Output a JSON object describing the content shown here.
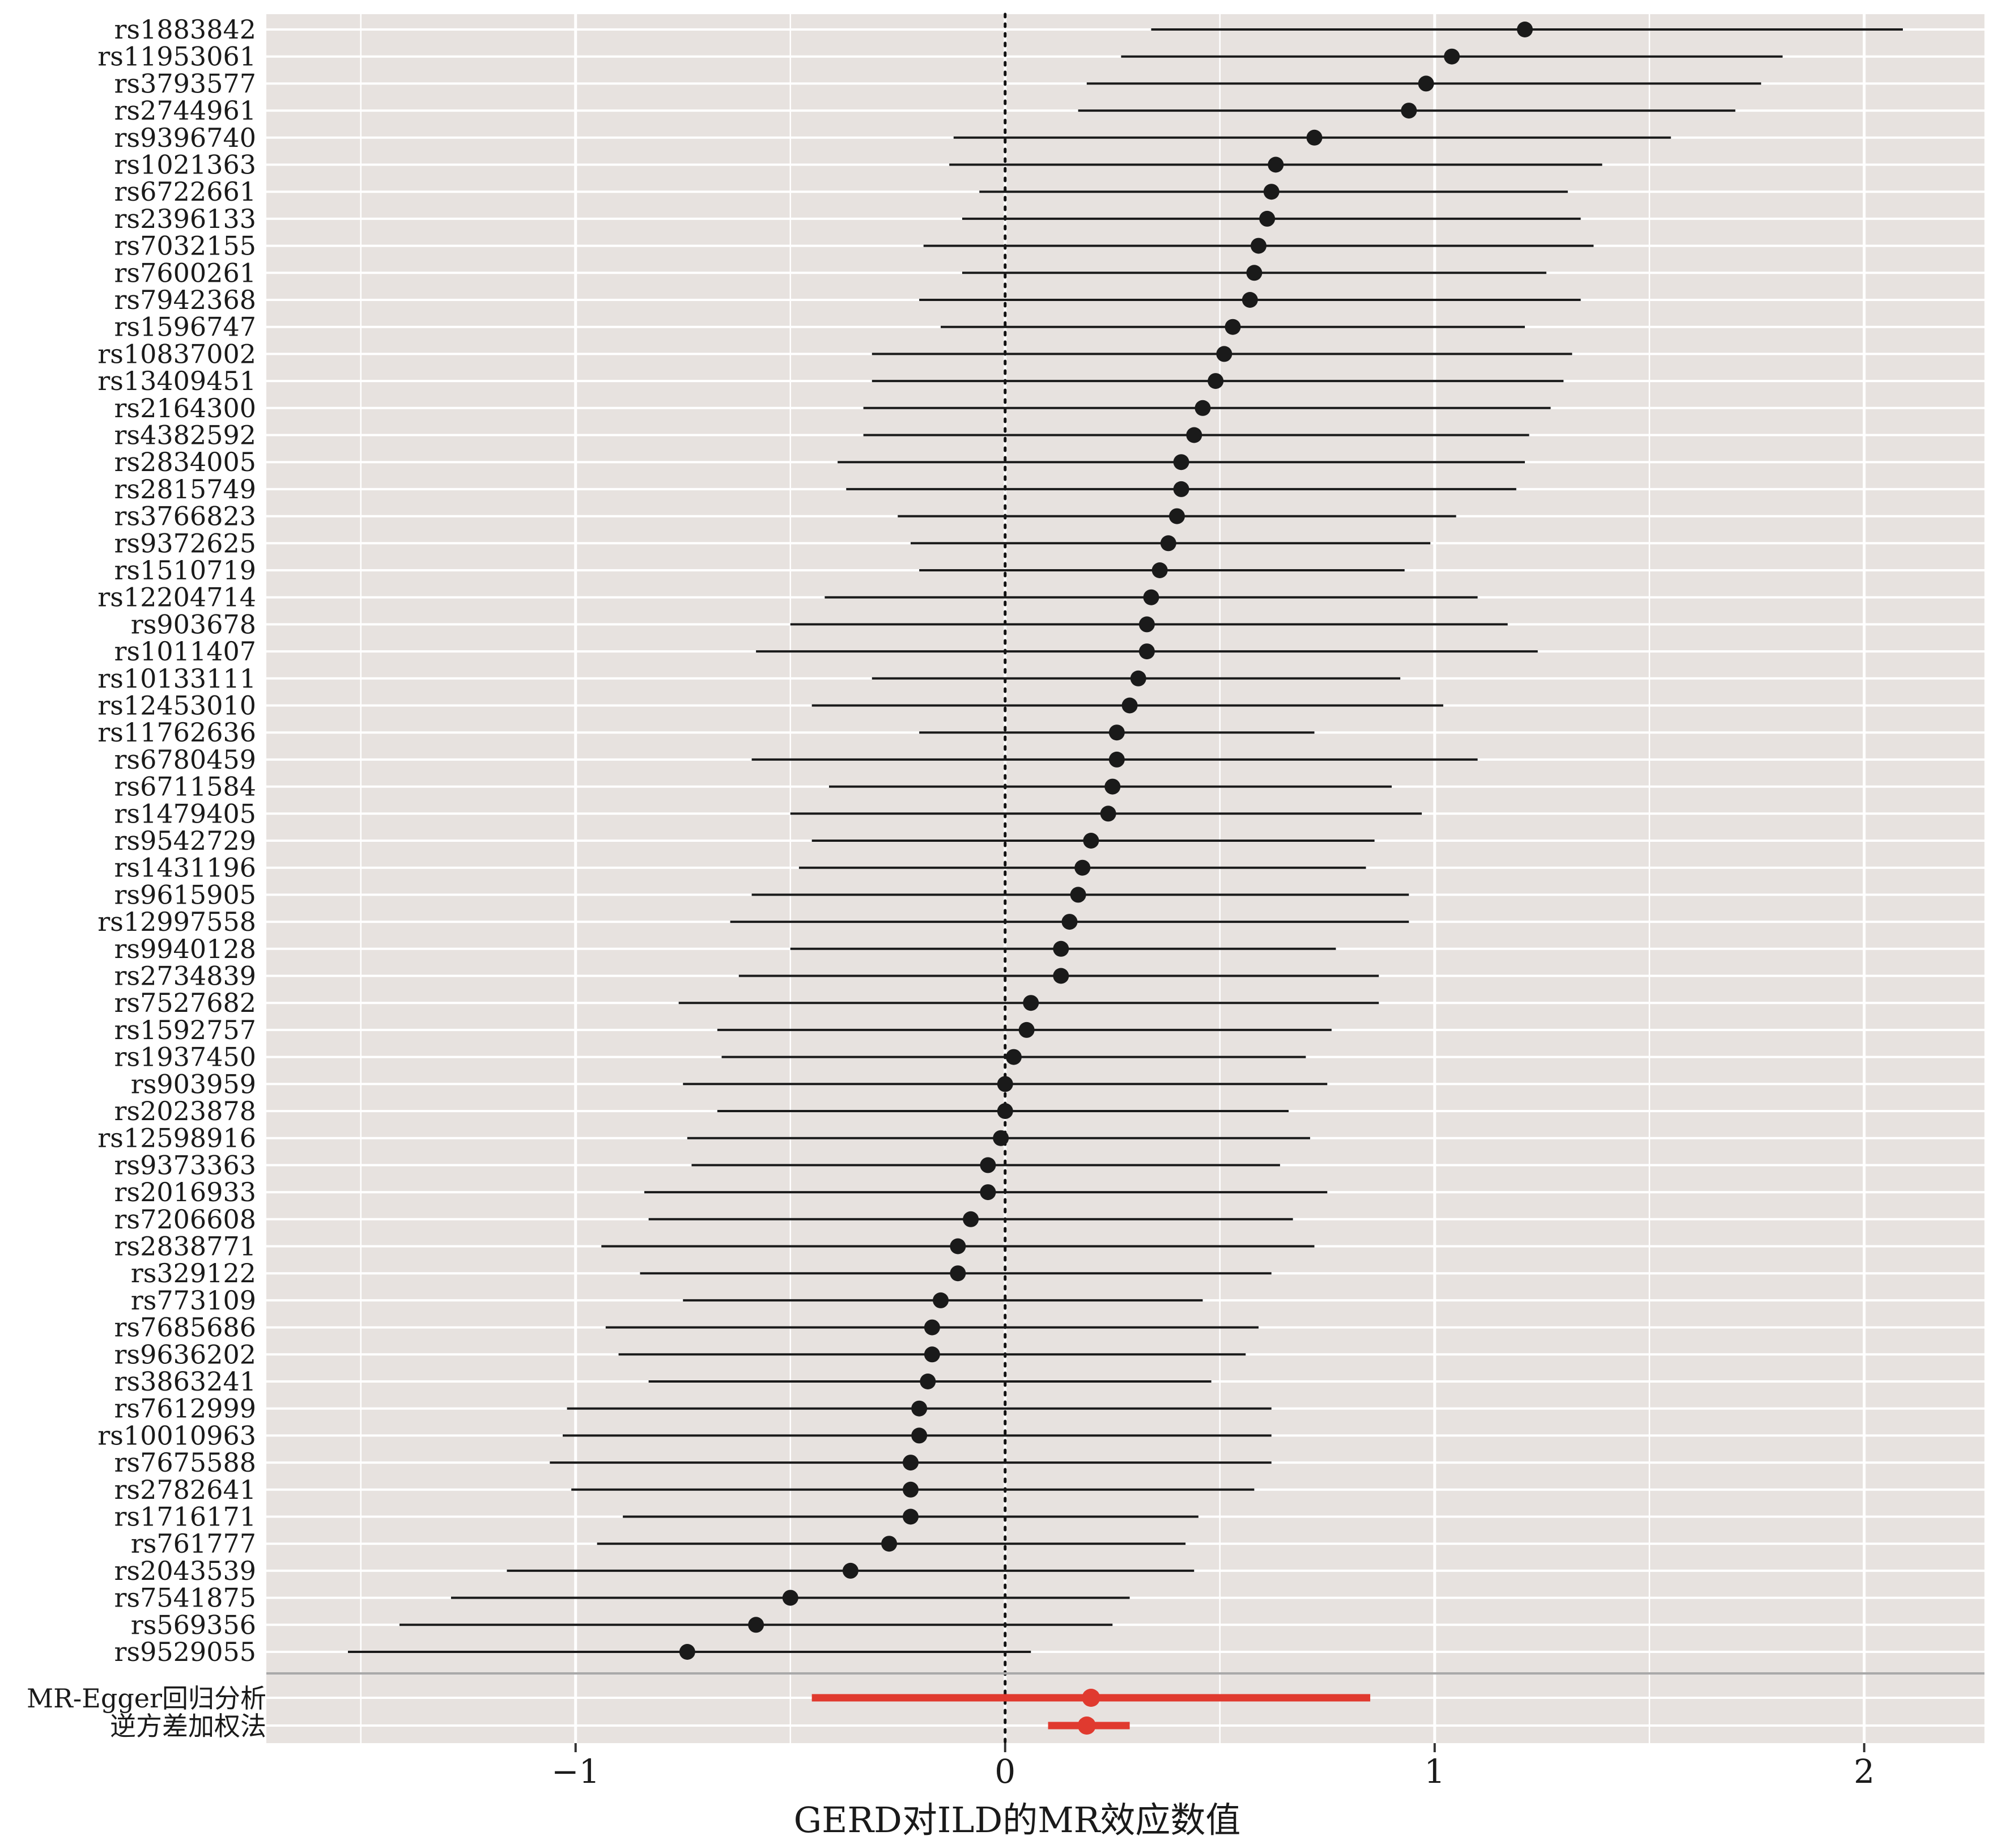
{
  "chart_data": {
    "type": "forest",
    "xlabel": "GERD对ILD的MR效应数值",
    "x_ticks": [
      -1,
      0,
      1,
      2
    ],
    "x_tick_labels": [
      "−1",
      "0",
      "1",
      "2"
    ],
    "xlim": [
      -1.72,
      2.28
    ],
    "reference_line": 0,
    "snps": [
      {
        "label": "rs1883842",
        "est": 1.21,
        "lo": 0.34,
        "hi": 2.09
      },
      {
        "label": "rs11953061",
        "est": 1.04,
        "lo": 0.27,
        "hi": 1.81
      },
      {
        "label": "rs3793577",
        "est": 0.98,
        "lo": 0.19,
        "hi": 1.76
      },
      {
        "label": "rs2744961",
        "est": 0.94,
        "lo": 0.17,
        "hi": 1.7
      },
      {
        "label": "rs9396740",
        "est": 0.72,
        "lo": -0.12,
        "hi": 1.55
      },
      {
        "label": "rs1021363",
        "est": 0.63,
        "lo": -0.13,
        "hi": 1.39
      },
      {
        "label": "rs6722661",
        "est": 0.62,
        "lo": -0.06,
        "hi": 1.31
      },
      {
        "label": "rs2396133",
        "est": 0.61,
        "lo": -0.1,
        "hi": 1.34
      },
      {
        "label": "rs7032155",
        "est": 0.59,
        "lo": -0.19,
        "hi": 1.37
      },
      {
        "label": "rs7600261",
        "est": 0.58,
        "lo": -0.1,
        "hi": 1.26
      },
      {
        "label": "rs7942368",
        "est": 0.57,
        "lo": -0.2,
        "hi": 1.34
      },
      {
        "label": "rs1596747",
        "est": 0.53,
        "lo": -0.15,
        "hi": 1.21
      },
      {
        "label": "rs10837002",
        "est": 0.51,
        "lo": -0.31,
        "hi": 1.32
      },
      {
        "label": "rs13409451",
        "est": 0.49,
        "lo": -0.31,
        "hi": 1.3
      },
      {
        "label": "rs2164300",
        "est": 0.46,
        "lo": -0.33,
        "hi": 1.27
      },
      {
        "label": "rs4382592",
        "est": 0.44,
        "lo": -0.33,
        "hi": 1.22
      },
      {
        "label": "rs2834005",
        "est": 0.41,
        "lo": -0.39,
        "hi": 1.21
      },
      {
        "label": "rs2815749",
        "est": 0.41,
        "lo": -0.37,
        "hi": 1.19
      },
      {
        "label": "rs3766823",
        "est": 0.4,
        "lo": -0.25,
        "hi": 1.05
      },
      {
        "label": "rs9372625",
        "est": 0.38,
        "lo": -0.22,
        "hi": 0.99
      },
      {
        "label": "rs1510719",
        "est": 0.36,
        "lo": -0.2,
        "hi": 0.93
      },
      {
        "label": "rs12204714",
        "est": 0.34,
        "lo": -0.42,
        "hi": 1.1
      },
      {
        "label": "rs903678",
        "est": 0.33,
        "lo": -0.5,
        "hi": 1.17
      },
      {
        "label": "rs1011407",
        "est": 0.33,
        "lo": -0.58,
        "hi": 1.24
      },
      {
        "label": "rs10133111",
        "est": 0.31,
        "lo": -0.31,
        "hi": 0.92
      },
      {
        "label": "rs12453010",
        "est": 0.29,
        "lo": -0.45,
        "hi": 1.02
      },
      {
        "label": "rs11762636",
        "est": 0.26,
        "lo": -0.2,
        "hi": 0.72
      },
      {
        "label": "rs6780459",
        "est": 0.26,
        "lo": -0.59,
        "hi": 1.1
      },
      {
        "label": "rs6711584",
        "est": 0.25,
        "lo": -0.41,
        "hi": 0.9
      },
      {
        "label": "rs1479405",
        "est": 0.24,
        "lo": -0.5,
        "hi": 0.97
      },
      {
        "label": "rs9542729",
        "est": 0.2,
        "lo": -0.45,
        "hi": 0.86
      },
      {
        "label": "rs1431196",
        "est": 0.18,
        "lo": -0.48,
        "hi": 0.84
      },
      {
        "label": "rs9615905",
        "est": 0.17,
        "lo": -0.59,
        "hi": 0.94
      },
      {
        "label": "rs12997558",
        "est": 0.15,
        "lo": -0.64,
        "hi": 0.94
      },
      {
        "label": "rs9940128",
        "est": 0.13,
        "lo": -0.5,
        "hi": 0.77
      },
      {
        "label": "rs2734839",
        "est": 0.13,
        "lo": -0.62,
        "hi": 0.87
      },
      {
        "label": "rs7527682",
        "est": 0.06,
        "lo": -0.76,
        "hi": 0.87
      },
      {
        "label": "rs1592757",
        "est": 0.05,
        "lo": -0.67,
        "hi": 0.76
      },
      {
        "label": "rs1937450",
        "est": 0.02,
        "lo": -0.66,
        "hi": 0.7
      },
      {
        "label": "rs903959",
        "est": 0.0,
        "lo": -0.75,
        "hi": 0.75
      },
      {
        "label": "rs2023878",
        "est": 0.0,
        "lo": -0.67,
        "hi": 0.66
      },
      {
        "label": "rs12598916",
        "est": -0.01,
        "lo": -0.74,
        "hi": 0.71
      },
      {
        "label": "rs9373363",
        "est": -0.04,
        "lo": -0.73,
        "hi": 0.64
      },
      {
        "label": "rs2016933",
        "est": -0.04,
        "lo": -0.84,
        "hi": 0.75
      },
      {
        "label": "rs7206608",
        "est": -0.08,
        "lo": -0.83,
        "hi": 0.67
      },
      {
        "label": "rs2838771",
        "est": -0.11,
        "lo": -0.94,
        "hi": 0.72
      },
      {
        "label": "rs329122",
        "est": -0.11,
        "lo": -0.85,
        "hi": 0.62
      },
      {
        "label": "rs773109",
        "est": -0.15,
        "lo": -0.75,
        "hi": 0.46
      },
      {
        "label": "rs7685686",
        "est": -0.17,
        "lo": -0.93,
        "hi": 0.59
      },
      {
        "label": "rs9636202",
        "est": -0.17,
        "lo": -0.9,
        "hi": 0.56
      },
      {
        "label": "rs3863241",
        "est": -0.18,
        "lo": -0.83,
        "hi": 0.48
      },
      {
        "label": "rs7612999",
        "est": -0.2,
        "lo": -1.02,
        "hi": 0.62
      },
      {
        "label": "rs10010963",
        "est": -0.2,
        "lo": -1.03,
        "hi": 0.62
      },
      {
        "label": "rs7675588",
        "est": -0.22,
        "lo": -1.06,
        "hi": 0.62
      },
      {
        "label": "rs2782641",
        "est": -0.22,
        "lo": -1.01,
        "hi": 0.58
      },
      {
        "label": "rs1716171",
        "est": -0.22,
        "lo": -0.89,
        "hi": 0.45
      },
      {
        "label": "rs761777",
        "est": -0.27,
        "lo": -0.95,
        "hi": 0.42
      },
      {
        "label": "rs2043539",
        "est": -0.36,
        "lo": -1.16,
        "hi": 0.44
      },
      {
        "label": "rs7541875",
        "est": -0.5,
        "lo": -1.29,
        "hi": 0.29
      },
      {
        "label": "rs569356",
        "est": -0.58,
        "lo": -1.41,
        "hi": 0.25
      },
      {
        "label": "rs9529055",
        "est": -0.74,
        "lo": -1.53,
        "hi": 0.06
      }
    ],
    "summary": [
      {
        "label": "MR-Egger回归分析",
        "est": 0.2,
        "lo": -0.45,
        "hi": 0.85
      },
      {
        "label": "逆方差加权法",
        "est": 0.19,
        "lo": 0.1,
        "hi": 0.29
      }
    ],
    "colors": {
      "panel_bg": "#e7e2df",
      "grid": "#ffffff",
      "snp": "#1a1a1a",
      "summary": "#e03a2f",
      "separator": "#a9a9a9"
    }
  }
}
